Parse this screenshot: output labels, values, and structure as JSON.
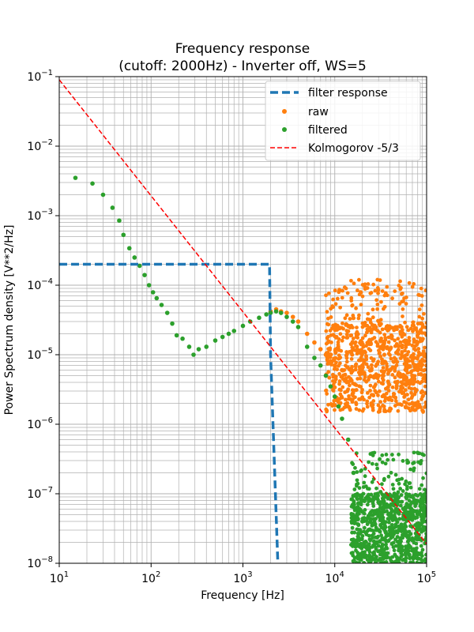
{
  "chart_data": {
    "type": "scatter",
    "title": [
      "Frequency response",
      "(cutoff: 2000Hz) - Inverter off, WS=5"
    ],
    "xlabel": "Frequency [Hz]",
    "ylabel": "Power Spectrum density [V**2/Hz]",
    "xscale": "log",
    "yscale": "log",
    "xlim": [
      10,
      100000
    ],
    "ylim": [
      1e-08,
      0.1
    ],
    "x_ticks": [
      {
        "base": "10",
        "exp": "1",
        "value": 10
      },
      {
        "base": "10",
        "exp": "2",
        "value": 100
      },
      {
        "base": "10",
        "exp": "3",
        "value": 1000
      },
      {
        "base": "10",
        "exp": "4",
        "value": 10000
      },
      {
        "base": "10",
        "exp": "5",
        "value": 100000
      }
    ],
    "y_ticks": [
      {
        "base": "10",
        "exp": "−8",
        "value": 1e-08
      },
      {
        "base": "10",
        "exp": "−7",
        "value": 1e-07
      },
      {
        "base": "10",
        "exp": "−6",
        "value": 1e-06
      },
      {
        "base": "10",
        "exp": "−5",
        "value": 1e-05
      },
      {
        "base": "10",
        "exp": "−4",
        "value": 0.0001
      },
      {
        "base": "10",
        "exp": "−3",
        "value": 0.001
      },
      {
        "base": "10",
        "exp": "−2",
        "value": 0.01
      },
      {
        "base": "10",
        "exp": "−1",
        "value": 0.1
      }
    ],
    "grid": true,
    "legend_position": "top-right",
    "series": [
      {
        "name": "filter response",
        "kind": "dashed-line",
        "color": "#1f77b4",
        "x": [
          10,
          1950,
          2000,
          2400,
          2450
        ],
        "y": [
          0.0002,
          0.0002,
          1e-05,
          1e-08,
          1e-09
        ]
      },
      {
        "name": "raw",
        "kind": "markers",
        "color": "#ff7f0e",
        "points": [
          [
            2000,
            4.2e-05
          ],
          [
            2300,
            4.5e-05
          ],
          [
            2600,
            4.2e-05
          ],
          [
            3000,
            4e-05
          ],
          [
            3500,
            3.5e-05
          ],
          [
            4000,
            3e-05
          ],
          [
            5000,
            2e-05
          ],
          [
            6000,
            1.5e-05
          ],
          [
            7000,
            1.2e-05
          ],
          [
            8000,
            1e-05
          ],
          [
            9000,
            8e-06
          ],
          [
            10000,
            7e-06
          ],
          [
            12000,
            6e-06
          ],
          [
            15000,
            6e-06
          ],
          [
            20000,
            7e-06
          ],
          [
            25000,
            6e-06
          ],
          [
            30000,
            5e-06
          ],
          [
            40000,
            6e-06
          ],
          [
            50000,
            5e-06
          ],
          [
            60000,
            6e-06
          ],
          [
            70000,
            5e-06
          ],
          [
            80000,
            6e-06
          ],
          [
            100000,
            7e-06
          ]
        ],
        "band": {
          "x_start": 8000,
          "x_end": 100000,
          "y_low": 1.5e-06,
          "y_high": 3e-05,
          "peak": 0.00012
        }
      },
      {
        "name": "filtered",
        "kind": "markers",
        "color": "#2ca02c",
        "points": [
          [
            15,
            0.0035
          ],
          [
            23,
            0.0029
          ],
          [
            30,
            0.002
          ],
          [
            38,
            0.0013
          ],
          [
            45,
            0.00085
          ],
          [
            50,
            0.00053
          ],
          [
            58,
            0.00034
          ],
          [
            66,
            0.00025
          ],
          [
            75,
            0.00019
          ],
          [
            85,
            0.00014
          ],
          [
            95,
            0.0001
          ],
          [
            105,
            7.9e-05
          ],
          [
            115,
            6.5e-05
          ],
          [
            130,
            5.2e-05
          ],
          [
            150,
            4e-05
          ],
          [
            170,
            2.8e-05
          ],
          [
            190,
            1.9e-05
          ],
          [
            220,
            1.7e-05
          ],
          [
            260,
            1.3e-05
          ],
          [
            290,
            1e-05
          ],
          [
            330,
            1.2e-05
          ],
          [
            400,
            1.3e-05
          ],
          [
            500,
            1.6e-05
          ],
          [
            600,
            1.8e-05
          ],
          [
            700,
            2e-05
          ],
          [
            800,
            2.2e-05
          ],
          [
            1000,
            2.6e-05
          ],
          [
            1200,
            3e-05
          ],
          [
            1500,
            3.4e-05
          ],
          [
            1800,
            3.8e-05
          ],
          [
            2000,
            4e-05
          ],
          [
            2300,
            4.2e-05
          ],
          [
            2600,
            4e-05
          ],
          [
            3000,
            3.5e-05
          ],
          [
            3500,
            3e-05
          ],
          [
            4000,
            2.5e-05
          ],
          [
            5000,
            1.3e-05
          ],
          [
            6000,
            9e-06
          ],
          [
            7000,
            7e-06
          ],
          [
            8000,
            5e-06
          ],
          [
            9000,
            3.5e-06
          ],
          [
            10000,
            2.5e-06
          ],
          [
            11000,
            1.8e-06
          ],
          [
            12000,
            1.2e-06
          ],
          [
            14000,
            6e-07
          ],
          [
            16000,
            2e-07
          ],
          [
            18000,
            6e-08
          ],
          [
            20000,
            4e-08
          ],
          [
            30000,
            3e-08
          ],
          [
            50000,
            3e-08
          ],
          [
            80000,
            3e-08
          ],
          [
            100000,
            4e-08
          ]
        ],
        "band": {
          "x_start": 15000,
          "x_end": 100000,
          "y_low": 1e-08,
          "y_high": 1e-07,
          "peak": 4e-07
        }
      },
      {
        "name": "Kolmogorov -5/3",
        "kind": "dashed-line",
        "color": "#ff0000",
        "x": [
          10,
          100000
        ],
        "y": [
          0.09,
          1.9e-08
        ]
      }
    ]
  }
}
